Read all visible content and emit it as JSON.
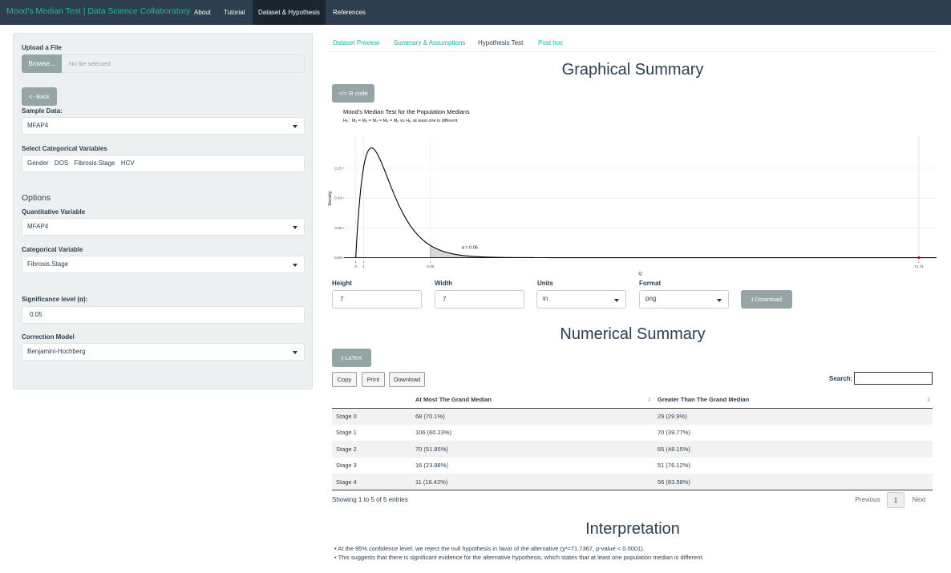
{
  "navbar": {
    "brand": "Mood's Median Test | Data Science Collaboratory",
    "items": [
      "About",
      "Tutorial",
      "Dataset & Hypothesis",
      "References"
    ]
  },
  "sidebar": {
    "upload_label": "Upload a File",
    "browse_label": "Browse...",
    "file_placeholder": "No file selected",
    "back_label": "<- Back",
    "sample_data_label": "Sample Data:",
    "sample_data_value": "MFAP4",
    "cat_vars_label": "Select Categorical Variables",
    "cat_vars": [
      "Gender",
      "DOS",
      "Fibrosis.Stage",
      "HCV"
    ],
    "options_heading": "Options",
    "quant_var_label": "Quantitative Variable",
    "quant_var_value": "MFAP4",
    "cat_var_label": "Categorical Variable",
    "cat_var_value": "Fibrosis.Stage",
    "sig_label": "Significance level (α):",
    "sig_value": "0.05",
    "correction_label": "Correction Model",
    "correction_value": "Benjamini-Hochberg"
  },
  "tabs": [
    "Dataset Preview",
    "Summary & Assumptions",
    "Hypothesis Test",
    "Post hoc"
  ],
  "graphical": {
    "heading": "Graphical Summary",
    "rcode_label": "R code"
  },
  "chart_data": {
    "type": "line",
    "title": "Mood's Median Test for the Population Medians",
    "subtitle": "H₀ : M₁ = M₂ = M₃ = M₄ = M₅ vs Hₐ: at least one is different",
    "xlabel": "Q",
    "ylabel": "Density",
    "xlim": [
      -1.5,
      74
    ],
    "ylim": [
      -0.006,
      0.205
    ],
    "yticks": [
      0.0,
      0.05,
      0.1,
      0.15
    ],
    "ytick_labels": [
      "0.00",
      "0.05",
      "0.10",
      "0.15"
    ],
    "xticks": [
      0,
      1,
      9.49,
      71.74
    ],
    "xtick_labels": [
      "0",
      "1",
      "9.49",
      "71.74"
    ],
    "distribution": "chi-squared",
    "df": 4,
    "critical_value": 9.49,
    "alpha_label": "α = 0.05",
    "test_statistic": 71.74,
    "grid": true
  },
  "download": {
    "height_label": "Height",
    "height_value": "7",
    "width_label": "Width",
    "width_value": "7",
    "units_label": "Units",
    "units_value": "in",
    "format_label": "Format",
    "format_value": "png",
    "button_label": "Download"
  },
  "numerical": {
    "heading": "Numerical Summary",
    "latex_label": "LaTeX",
    "buttons": [
      "Copy",
      "Print",
      "Download"
    ],
    "search_label": "Search:",
    "columns": [
      "",
      "At Most The Grand Median",
      "Greater Than The Grand Median"
    ],
    "rows": [
      [
        "Stage 0",
        "68 (70.1%)",
        "29 (29.9%)"
      ],
      [
        "Stage 1",
        "106 (60.23%)",
        "70 (39.77%)"
      ],
      [
        "Stage 2",
        "70 (51.85%)",
        "65 (48.15%)"
      ],
      [
        "Stage 3",
        "16 (23.88%)",
        "51 (76.12%)"
      ],
      [
        "Stage 4",
        "11 (16.42%)",
        "56 (83.58%)"
      ]
    ],
    "info": "Showing 1 to 5 of 5 entries",
    "previous": "Previous",
    "page": "1",
    "next": "Next"
  },
  "interpretation": {
    "heading": "Interpretation",
    "lines": [
      "• At the 95% confidence level, we reject the null hypothesis in favor of the alternative (χ²=71.7367, p-value < 0.0001).",
      "• This suggests that there is significant evidence for the alternative hypothesis, which states that at least one population median is different."
    ]
  },
  "colors": {
    "navbar": "#2c3e50",
    "accent": "#18bc9c",
    "gray_button": "#95a5a6",
    "sidebar": "#ecf0f1",
    "marker": "#cc0000"
  }
}
